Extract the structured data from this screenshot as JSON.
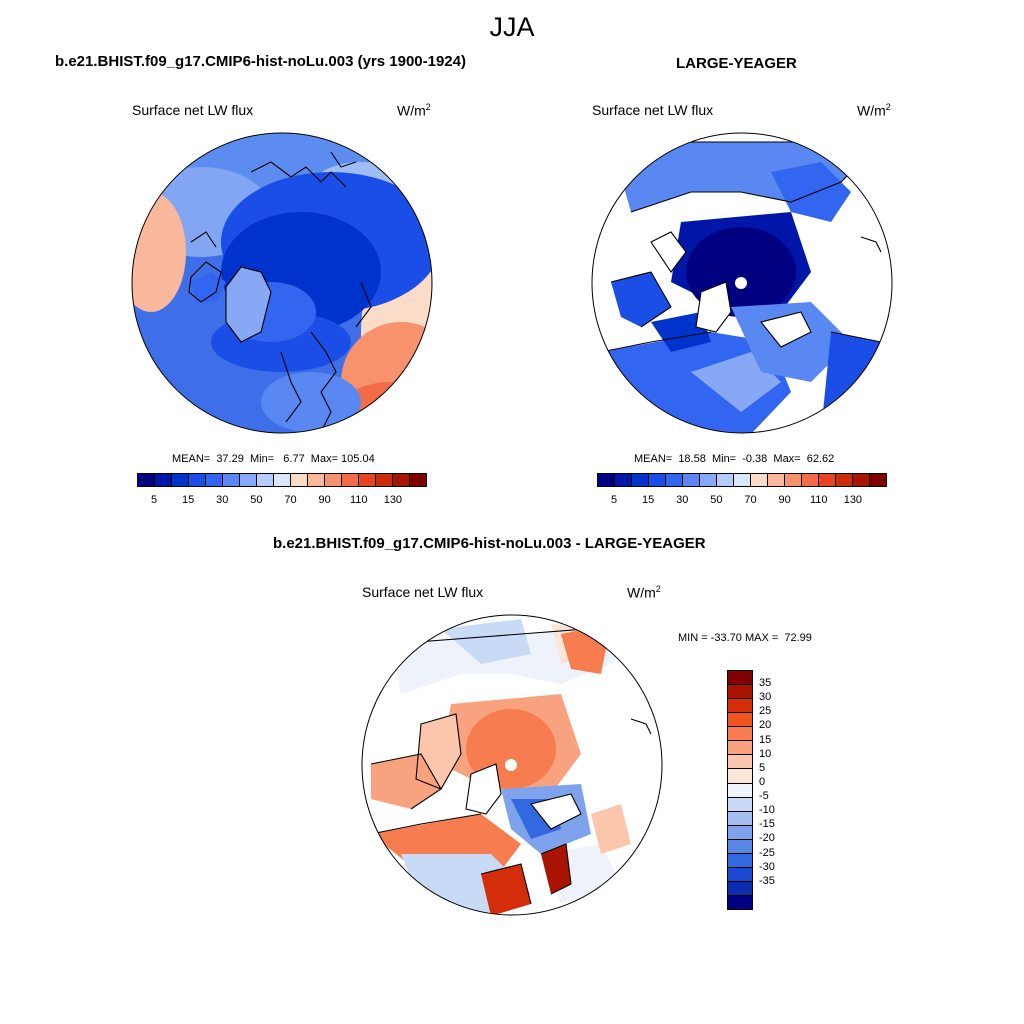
{
  "page": {
    "title": "JJA"
  },
  "panels": [
    {
      "heading": "b.e21.BHIST.f09_g17.CMIP6-hist-noLu.003 (yrs 1900-1924)",
      "variable": "Surface net LW flux",
      "units": "W/m",
      "units_sup": "2",
      "stats": "MEAN=  37.29  Min=   6.77  Max= 105.04",
      "colorbar": {
        "colors": [
          "#000080",
          "#0016a8",
          "#0033cc",
          "#1a4ee6",
          "#3366f0",
          "#5a88f2",
          "#87a9f5",
          "#b4ccf8",
          "#dbe7fb",
          "#fbdcc8",
          "#f9b79b",
          "#f7926c",
          "#f46c45",
          "#e5441e",
          "#c82c0a",
          "#a81400",
          "#800000"
        ],
        "tick_labels": [
          "5",
          "15",
          "30",
          "50",
          "70",
          "90",
          "110",
          "130"
        ]
      }
    },
    {
      "heading": "LARGE-YEAGER",
      "variable": "Surface net LW flux",
      "units": "W/m",
      "units_sup": "2",
      "stats": "MEAN=  18.58  Min=  -0.38  Max=  62.62",
      "colorbar": {
        "colors": [
          "#000080",
          "#0016a8",
          "#0033cc",
          "#1a4ee6",
          "#3366f0",
          "#5a88f2",
          "#87a9f5",
          "#b4ccf8",
          "#dbe7fb",
          "#fbdcc8",
          "#f9b79b",
          "#f7926c",
          "#f46c45",
          "#e5441e",
          "#c82c0a",
          "#a81400",
          "#800000"
        ],
        "tick_labels": [
          "5",
          "15",
          "30",
          "50",
          "70",
          "90",
          "110",
          "130"
        ]
      }
    },
    {
      "heading": "b.e21.BHIST.f09_g17.CMIP6-hist-noLu.003 - LARGE-YEAGER",
      "variable": "Surface net LW flux",
      "units": "W/m",
      "units_sup": "2",
      "stats": "MIN = -33.70 MAX =  72.99",
      "colorbar": {
        "colors": [
          "#800000",
          "#a81400",
          "#d32d0a",
          "#f0551f",
          "#f77d50",
          "#f9a27f",
          "#fbc6ac",
          "#fde6d8",
          "#eef3fb",
          "#c9daf6",
          "#a3bff1",
          "#7ea3ec",
          "#5887e6",
          "#3369e0",
          "#1a48d1",
          "#0d2cb0",
          "#000080"
        ],
        "tick_labels": [
          "35",
          "30",
          "25",
          "20",
          "15",
          "10",
          "5",
          "0",
          "-5",
          "-10",
          "-15",
          "-20",
          "-25",
          "-30",
          "-35"
        ]
      }
    }
  ]
}
